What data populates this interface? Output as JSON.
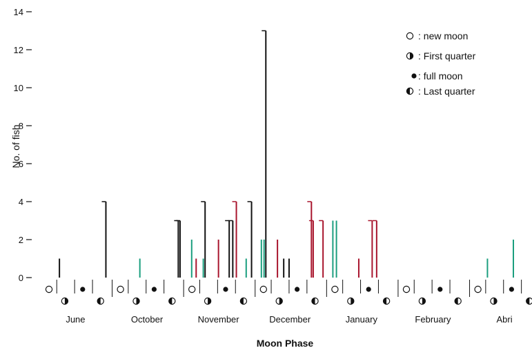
{
  "chart_data": {
    "type": "bar",
    "xlabel": "Moon Phase",
    "ylabel": "No. of fish",
    "ylim": [
      0,
      14
    ],
    "yticks": [
      0,
      2,
      4,
      6,
      8,
      10,
      12,
      14
    ],
    "grid": false,
    "legend": {
      "placement": "top-right",
      "entries": [
        {
          "symbol": "new",
          "label": ": new moon"
        },
        {
          "symbol": "first",
          "label": ": First quarter"
        },
        {
          "symbol": "full",
          "label": ": full moon"
        },
        {
          "symbol": "last",
          "label": ": Last quarter"
        }
      ]
    },
    "colors": {
      "black": "#111111",
      "green": "#1a9e7e",
      "red": "#a8142c"
    },
    "months": [
      {
        "label": "June",
        "phases": [
          "new",
          "first",
          "full",
          "last"
        ],
        "bars": [
          {
            "pos": 0.7,
            "value": 1,
            "color": "black"
          },
          {
            "pos": 3.3,
            "value": 4,
            "color": "black"
          }
        ]
      },
      {
        "label": "October",
        "phases": [
          "new",
          "first",
          "full",
          "last"
        ],
        "bars": [
          {
            "pos": 1.2,
            "value": 1,
            "color": "green"
          },
          {
            "pos": 3.35,
            "value": 3,
            "color": "black"
          },
          {
            "pos": 3.45,
            "value": 3,
            "color": "black"
          }
        ]
      },
      {
        "label": "November",
        "phases": [
          "new",
          "first",
          "full",
          "last"
        ],
        "bars": [
          {
            "pos": 0.1,
            "value": 2,
            "color": "green"
          },
          {
            "pos": 0.35,
            "value": 1,
            "color": "red"
          },
          {
            "pos": 0.75,
            "value": 1,
            "color": "green"
          },
          {
            "pos": 0.85,
            "value": 4,
            "color": "black"
          },
          {
            "pos": 1.6,
            "value": 2,
            "color": "red"
          },
          {
            "pos": 2.2,
            "value": 3,
            "color": "black"
          },
          {
            "pos": 2.4,
            "value": 3,
            "color": "black"
          },
          {
            "pos": 2.6,
            "value": 4,
            "color": "red"
          },
          {
            "pos": 3.15,
            "value": 1,
            "color": "green"
          },
          {
            "pos": 3.45,
            "value": 4,
            "color": "black"
          }
        ]
      },
      {
        "label": "December",
        "phases": [
          "new",
          "first",
          "full",
          "last"
        ],
        "bars": [
          {
            "pos": 0.0,
            "value": 2,
            "color": "green"
          },
          {
            "pos": 0.15,
            "value": 2,
            "color": "green"
          },
          {
            "pos": 0.25,
            "value": 13,
            "color": "black"
          },
          {
            "pos": 0.9,
            "value": 2,
            "color": "red"
          },
          {
            "pos": 1.25,
            "value": 1,
            "color": "black"
          },
          {
            "pos": 1.55,
            "value": 1,
            "color": "black"
          },
          {
            "pos": 2.8,
            "value": 4,
            "color": "red"
          },
          {
            "pos": 2.9,
            "value": 3,
            "color": "red"
          },
          {
            "pos": 3.45,
            "value": 3,
            "color": "red"
          }
        ]
      },
      {
        "label": "January",
        "phases": [
          "new",
          "first",
          "full",
          "last"
        ],
        "bars": [
          {
            "pos": 0.0,
            "value": 3,
            "color": "green"
          },
          {
            "pos": 0.2,
            "value": 3,
            "color": "green"
          },
          {
            "pos": 1.45,
            "value": 1,
            "color": "red"
          },
          {
            "pos": 2.2,
            "value": 3,
            "color": "red"
          },
          {
            "pos": 2.45,
            "value": 3,
            "color": "red"
          }
        ]
      },
      {
        "label": "February",
        "phases": [
          "new",
          "first",
          "full",
          "last"
        ],
        "bars": []
      },
      {
        "label": "Abri",
        "phases": [
          "new",
          "first",
          "full",
          "last"
        ],
        "bars": [
          {
            "pos": 0.65,
            "value": 1,
            "color": "green"
          },
          {
            "pos": 2.1,
            "value": 2,
            "color": "green"
          }
        ]
      }
    ]
  }
}
